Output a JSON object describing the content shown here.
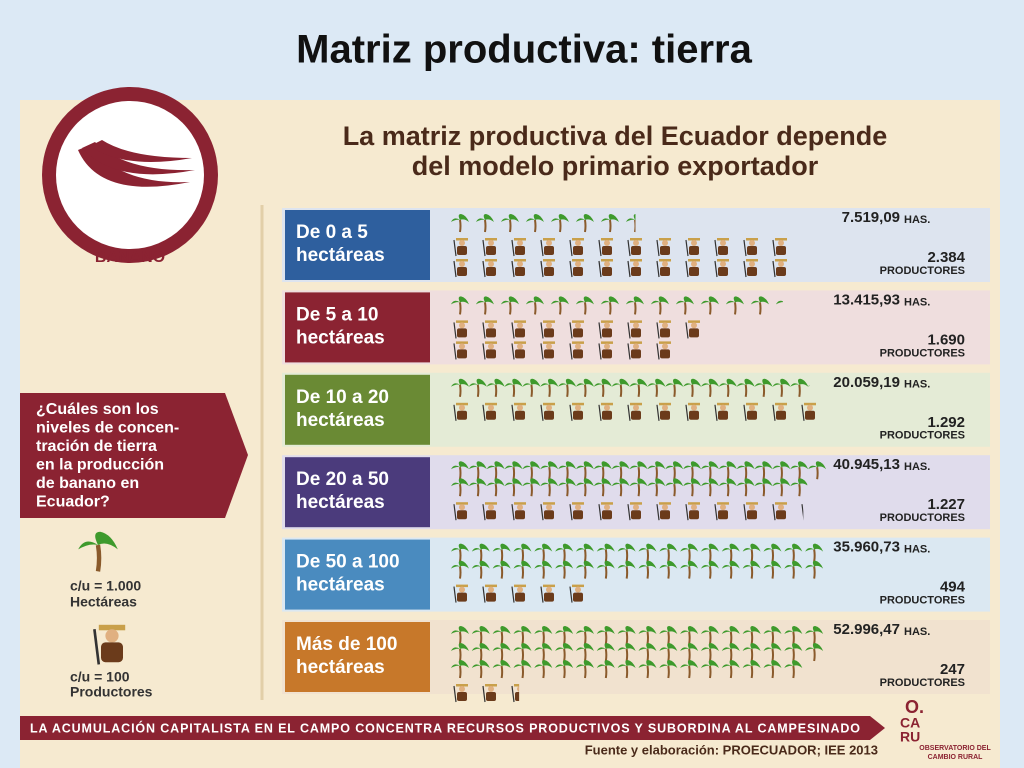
{
  "title": "Matriz productiva: tierra",
  "header": [
    "La matriz productiva del Ecuador depende",
    "del modelo primario exportador"
  ],
  "product": "BANANO",
  "question": [
    "¿Cuáles son los",
    "niveles de concen-",
    "tración de tierra",
    "en la producción",
    "de banano en",
    "Ecuador?"
  ],
  "legend": {
    "palm": {
      "label": "c/u = 1.000",
      "unit": "Hectáreas",
      "value": 1000
    },
    "farmer": {
      "label": "c/u = 100",
      "unit": "Productores",
      "value": 100
    }
  },
  "rows": [
    {
      "label": [
        "De 0 a 5",
        "hectáreas"
      ],
      "hectares": {
        "value": 7519.09,
        "label": "7.519,09"
      },
      "hectares_unit": "HAS.",
      "producers": {
        "value": 2384,
        "label": "2.384"
      },
      "producers_unit": "PRODUCTORES"
    },
    {
      "label": [
        "De 5 a 10",
        "hectáreas"
      ],
      "hectares": {
        "value": 13415.93,
        "label": "13.415,93"
      },
      "hectares_unit": "HAS.",
      "producers": {
        "value": 1690,
        "label": "1.690"
      },
      "producers_unit": "PRODUCTORES"
    },
    {
      "label": [
        "De 10 a 20",
        "hectáreas"
      ],
      "hectares": {
        "value": 20059.19,
        "label": "20.059,19"
      },
      "hectares_unit": "HAS.",
      "producers": {
        "value": 1292,
        "label": "1.292"
      },
      "producers_unit": "PRODUCTORES"
    },
    {
      "label": [
        "De 20 a 50",
        "hectáreas"
      ],
      "hectares": {
        "value": 40945.13,
        "label": "40.945,13"
      },
      "hectares_unit": "HAS.",
      "producers": {
        "value": 1227,
        "label": "1.227"
      },
      "producers_unit": "PRODUCTORES"
    },
    {
      "label": [
        "De 50 a 100",
        "hectáreas"
      ],
      "hectares": {
        "value": 35960.73,
        "label": "35.960,73"
      },
      "hectares_unit": "HAS.",
      "producers": {
        "value": 494,
        "label": "494"
      },
      "producers_unit": "PRODUCTORES"
    },
    {
      "label": [
        "Más de 100",
        "hectáreas"
      ],
      "hectares": {
        "value": 52996.47,
        "label": "52.996,47"
      },
      "hectares_unit": "HAS.",
      "producers": {
        "value": 247,
        "label": "247"
      },
      "producers_unit": "PRODUCTORES"
    }
  ],
  "footer": "LA ACUMULACIÓN CAPITALISTA EN EL CAMPO CONCENTRA RECURSOS PRODUCTIVOS Y SUBORDINA AL CAMPESINADO",
  "source": "Fuente y elaboración: PROECUADOR; IEE 2013",
  "logo": [
    "O.",
    "CA",
    "RU",
    "OBSERVATORIO DEL",
    "CAMBIO RURAL"
  ]
}
